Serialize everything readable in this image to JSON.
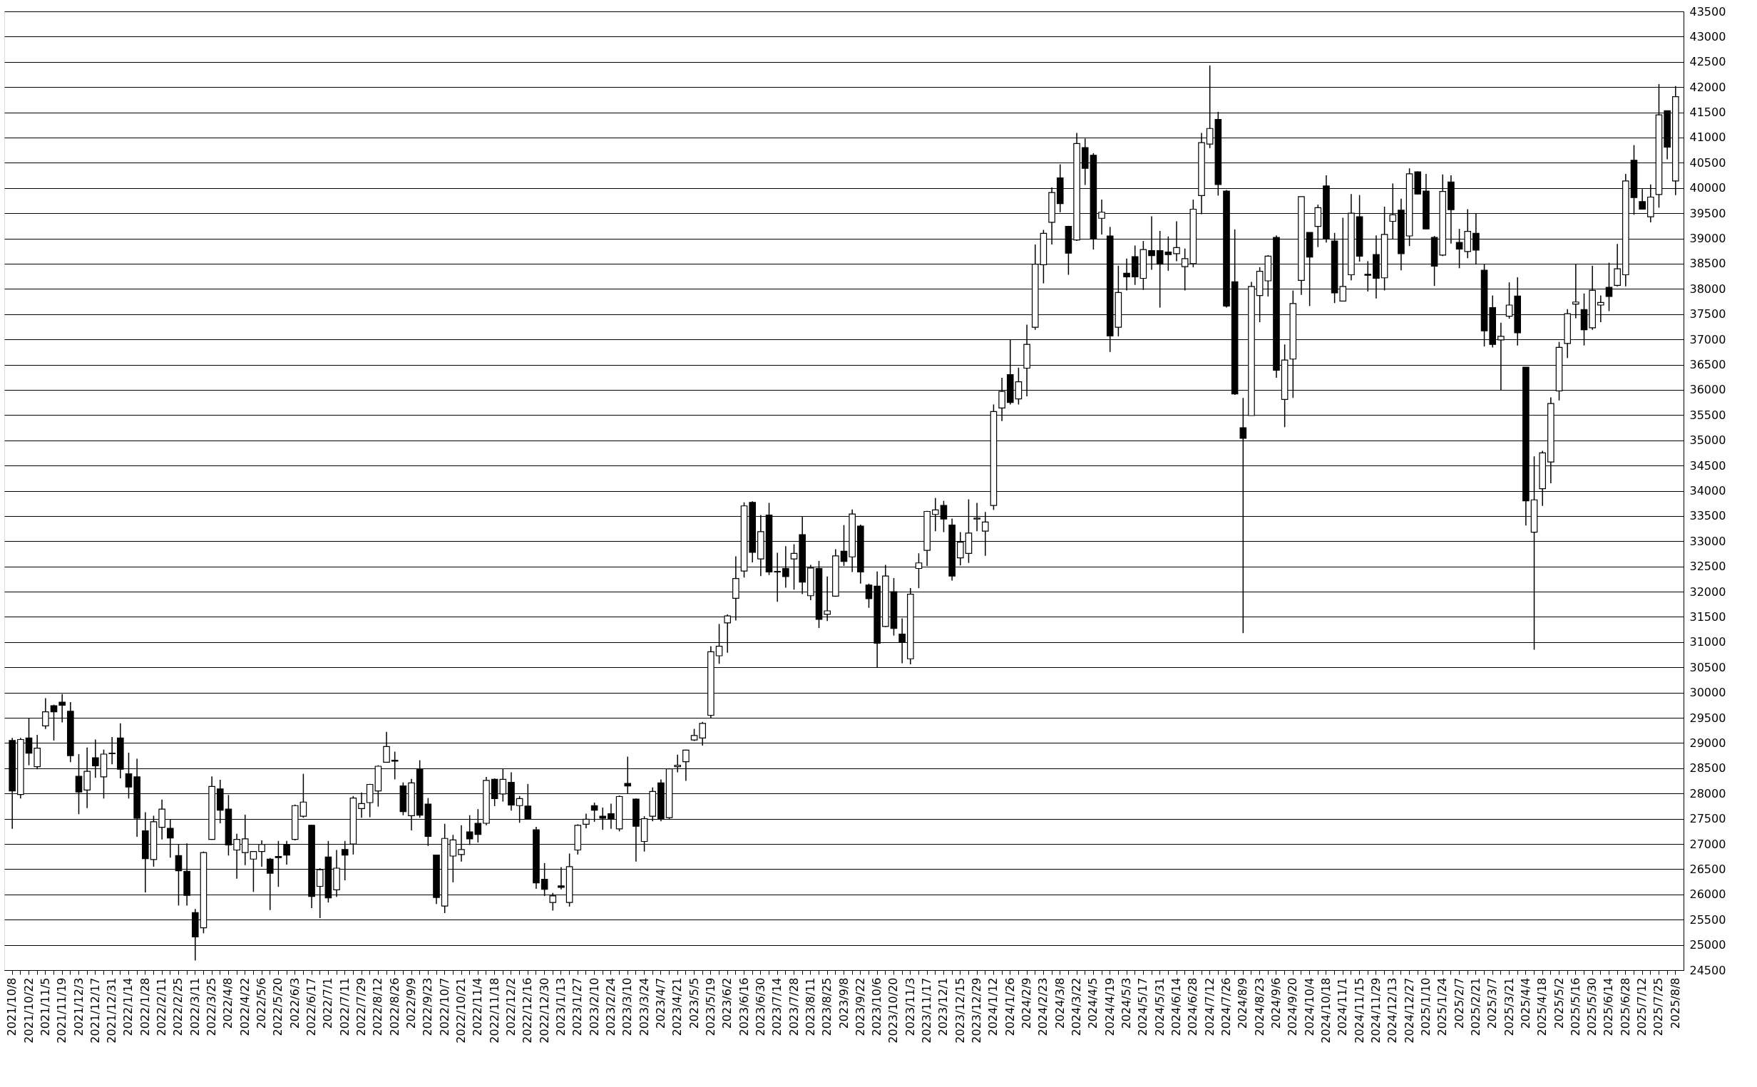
{
  "chart_data": {
    "type": "candlestick",
    "categories": [
      "2021/10/8",
      null,
      "2021/10/22",
      null,
      "2021/11/5",
      null,
      "2021/11/19",
      null,
      "2021/12/3",
      null,
      "2021/12/17",
      null,
      "2021/12/31",
      null,
      "2022/1/14",
      null,
      "2022/1/28",
      null,
      "2022/2/11",
      null,
      "2022/2/25",
      null,
      "2022/3/11",
      null,
      "2022/3/25",
      null,
      "2022/4/8",
      null,
      "2022/4/22",
      null,
      "2022/5/6",
      null,
      "2022/5/20",
      null,
      "2022/6/3",
      null,
      "2022/6/17",
      null,
      "2022/7/1",
      null,
      "2022/7/11",
      null,
      "2022/7/29",
      null,
      "2022/8/12",
      null,
      "2022/8/26",
      null,
      "2022/9/9",
      null,
      "2022/9/23",
      null,
      "2022/10/7",
      null,
      "2022/10/21",
      null,
      "2022/11/4",
      null,
      "2022/11/18",
      null,
      "2022/12/2",
      null,
      "2022/12/16",
      null,
      "2022/12/30",
      null,
      "2023/1/13",
      null,
      "2023/1/27",
      null,
      "2023/2/10",
      null,
      "2023/2/24",
      null,
      "2023/3/10",
      null,
      "2023/3/24",
      null,
      "2023/4/7",
      null,
      "2023/4/21",
      null,
      "2023/5/5",
      null,
      "2023/5/19",
      null,
      "2023/6/2",
      null,
      "2023/6/16",
      null,
      "2023/6/30",
      null,
      "2023/7/14",
      null,
      "2023/7/28",
      null,
      "2023/8/11",
      null,
      "2023/8/25",
      null,
      "2023/9/8",
      null,
      "2023/9/22",
      null,
      "2023/10/6",
      null,
      "2023/10/20",
      null,
      "2023/11/3",
      null,
      "2023/11/17",
      null,
      "2023/12/1",
      null,
      "2023/12/15",
      null,
      "2023/12/29",
      null,
      "2024/1/12",
      null,
      "2024/1/26",
      null,
      "2024/2/9",
      null,
      "2024/2/23",
      null,
      "2024/3/8",
      null,
      "2024/3/22",
      null,
      "2024/4/5",
      null,
      "2024/4/19",
      null,
      "2024/5/3",
      null,
      "2024/5/17",
      null,
      "2024/5/31",
      null,
      "2024/6/14",
      null,
      "2024/6/28",
      null,
      "2024/7/12",
      null,
      "2024/7/26",
      null,
      "2024/8/9",
      null,
      "2024/8/23",
      null,
      "2024/9/6",
      null,
      "2024/9/20",
      null,
      "2024/10/4",
      null,
      "2024/10/18",
      null,
      "2024/11/1",
      null,
      "2024/11/15",
      null,
      "2024/11/29",
      null,
      "2024/12/13",
      null,
      "2024/12/27",
      null,
      "2025/1/10",
      null,
      "2025/1/24",
      null,
      "2025/2/7",
      null,
      "2025/2/21",
      null,
      "2025/3/7",
      null,
      "2025/3/21",
      null,
      "2025/4/4",
      null,
      "2025/4/18",
      null,
      "2025/5/2",
      null,
      "2025/5/16",
      null,
      "2025/5/30",
      null,
      "2025/6/14",
      null,
      "2025/6/28",
      null,
      "2025/7/12",
      null,
      "2025/7/25",
      null,
      "2025/8/8"
    ],
    "ohlc": [
      [
        29050,
        29100,
        27300,
        28050
      ],
      [
        27980,
        29100,
        27900,
        29070
      ],
      [
        29100,
        29490,
        28560,
        28800
      ],
      [
        28530,
        29160,
        28480,
        28900
      ],
      [
        29340,
        29890,
        29280,
        29620
      ],
      [
        29740,
        29760,
        29050,
        29620
      ],
      [
        29810,
        29970,
        29410,
        29750
      ],
      [
        29630,
        29810,
        28620,
        28750
      ],
      [
        28340,
        28780,
        27590,
        28030
      ],
      [
        28070,
        28910,
        27710,
        28440
      ],
      [
        28710,
        29070,
        28310,
        28550
      ],
      [
        28330,
        28870,
        27900,
        28780
      ],
      [
        28790,
        29120,
        28580,
        28800
      ],
      [
        29100,
        29390,
        28300,
        28480
      ],
      [
        28390,
        28810,
        27900,
        28130
      ],
      [
        28330,
        28690,
        27140,
        27510
      ],
      [
        27260,
        27630,
        26040,
        26710
      ],
      [
        26690,
        27560,
        26550,
        27440
      ],
      [
        27330,
        27880,
        27090,
        27690
      ],
      [
        27310,
        27480,
        26730,
        27120
      ],
      [
        26770,
        26990,
        25780,
        26470
      ],
      [
        26460,
        27010,
        25780,
        25980
      ],
      [
        25640,
        25710,
        24690,
        25160
      ],
      [
        25340,
        26850,
        25230,
        26830
      ],
      [
        27090,
        28340,
        27080,
        28140
      ],
      [
        28090,
        28270,
        27410,
        27670
      ],
      [
        27690,
        27970,
        26770,
        26980
      ],
      [
        26880,
        27200,
        26310,
        27090
      ],
      [
        26830,
        27580,
        26580,
        27100
      ],
      [
        26700,
        26860,
        26050,
        26850
      ],
      [
        26850,
        27070,
        26550,
        26990
      ],
      [
        26700,
        26720,
        25690,
        26420
      ],
      [
        26750,
        27060,
        26150,
        26730
      ],
      [
        26990,
        27060,
        26590,
        26780
      ],
      [
        27090,
        27780,
        27070,
        27760
      ],
      [
        27550,
        28390,
        27520,
        27830
      ],
      [
        27370,
        27380,
        25730,
        25960
      ],
      [
        26160,
        26520,
        25530,
        26490
      ],
      [
        26740,
        27060,
        25840,
        25930
      ],
      [
        26090,
        26880,
        25950,
        26520
      ],
      [
        26890,
        27060,
        26280,
        26780
      ],
      [
        27000,
        27950,
        26790,
        27910
      ],
      [
        27700,
        28020,
        27520,
        27800
      ],
      [
        27820,
        28190,
        27530,
        28180
      ],
      [
        28050,
        28560,
        27740,
        28540
      ],
      [
        28620,
        29220,
        28620,
        28930
      ],
      [
        28660,
        28830,
        28280,
        28640
      ],
      [
        28150,
        28220,
        27570,
        27640
      ],
      [
        27560,
        28290,
        27270,
        28210
      ],
      [
        28490,
        28660,
        27520,
        27570
      ],
      [
        27790,
        27910,
        26960,
        27150
      ],
      [
        26780,
        26790,
        25810,
        25940
      ],
      [
        25770,
        27400,
        25630,
        27110
      ],
      [
        26760,
        27180,
        26240,
        27080
      ],
      [
        26790,
        27370,
        26650,
        26890
      ],
      [
        27240,
        27570,
        26980,
        27100
      ],
      [
        27410,
        27690,
        27030,
        27190
      ],
      [
        27410,
        28330,
        27370,
        28260
      ],
      [
        28280,
        28300,
        27750,
        27900
      ],
      [
        27990,
        28490,
        27840,
        28280
      ],
      [
        28220,
        28420,
        27660,
        27770
      ],
      [
        27760,
        27950,
        27420,
        27900
      ],
      [
        27750,
        28190,
        27500,
        27500
      ],
      [
        27280,
        27340,
        26110,
        26230
      ],
      [
        26300,
        26620,
        25970,
        26100
      ],
      [
        25840,
        26030,
        25680,
        25970
      ],
      [
        26170,
        26540,
        26100,
        26140
      ],
      [
        25840,
        26810,
        25760,
        26550
      ],
      [
        26880,
        27390,
        26790,
        27370
      ],
      [
        27390,
        27600,
        27310,
        27490
      ],
      [
        27760,
        27820,
        27440,
        27670
      ],
      [
        27550,
        27720,
        27280,
        27510
      ],
      [
        27600,
        27800,
        27300,
        27500
      ],
      [
        27300,
        27960,
        27250,
        27940
      ],
      [
        28200,
        28730,
        28000,
        28150
      ],
      [
        27890,
        27900,
        26650,
        27350
      ],
      [
        27050,
        27550,
        26850,
        27500
      ],
      [
        27550,
        28120,
        27450,
        28040
      ],
      [
        28210,
        28280,
        27450,
        27500
      ],
      [
        27520,
        28500,
        27480,
        28490
      ],
      [
        28530,
        28770,
        28420,
        28560
      ],
      [
        28630,
        28870,
        28250,
        28860
      ],
      [
        29060,
        29280,
        29040,
        29150
      ],
      [
        29100,
        29420,
        28950,
        29390
      ],
      [
        29550,
        30920,
        29490,
        30810
      ],
      [
        30730,
        31360,
        30570,
        30920
      ],
      [
        31380,
        31550,
        30790,
        31520
      ],
      [
        31870,
        32700,
        31430,
        32260
      ],
      [
        32410,
        33770,
        32280,
        33700
      ],
      [
        33770,
        33790,
        32580,
        32780
      ],
      [
        32650,
        33520,
        32310,
        33190
      ],
      [
        33520,
        33760,
        32330,
        32390
      ],
      [
        32400,
        32770,
        31800,
        32390
      ],
      [
        32460,
        32900,
        32080,
        32300
      ],
      [
        32650,
        32940,
        32040,
        32760
      ],
      [
        33130,
        33490,
        31950,
        32190
      ],
      [
        31920,
        32530,
        31830,
        32470
      ],
      [
        32460,
        32610,
        31280,
        31450
      ],
      [
        31550,
        32300,
        31420,
        31620
      ],
      [
        31910,
        32840,
        31900,
        32710
      ],
      [
        32800,
        33320,
        32510,
        32600
      ],
      [
        32690,
        33630,
        32390,
        33540
      ],
      [
        33300,
        33330,
        32160,
        32390
      ],
      [
        32130,
        32160,
        31680,
        31860
      ],
      [
        32110,
        32400,
        30500,
        30980
      ],
      [
        31310,
        32530,
        31300,
        32310
      ],
      [
        32000,
        32270,
        31130,
        31270
      ],
      [
        31160,
        31470,
        30580,
        31000
      ],
      [
        30670,
        32070,
        30560,
        31950
      ],
      [
        32460,
        32760,
        32070,
        32570
      ],
      [
        32820,
        33600,
        32510,
        33590
      ],
      [
        33530,
        33860,
        33200,
        33620
      ],
      [
        33710,
        33800,
        33180,
        33440
      ],
      [
        33320,
        33450,
        32220,
        32310
      ],
      [
        32670,
        33180,
        32520,
        32980
      ],
      [
        32760,
        33830,
        32570,
        33160
      ],
      [
        33440,
        33760,
        33200,
        33460
      ],
      [
        33200,
        33580,
        32710,
        33380
      ],
      [
        33710,
        35710,
        33620,
        35570
      ],
      [
        35640,
        36240,
        35380,
        35970
      ],
      [
        36300,
        36990,
        35710,
        35750
      ],
      [
        35820,
        36440,
        35710,
        36160
      ],
      [
        36430,
        37290,
        35870,
        36900
      ],
      [
        37240,
        38880,
        37190,
        38490
      ],
      [
        38480,
        39170,
        38110,
        39100
      ],
      [
        39320,
        40010,
        38880,
        39910
      ],
      [
        40200,
        40470,
        39520,
        39690
      ],
      [
        39240,
        39250,
        38280,
        38710
      ],
      [
        38970,
        41090,
        38950,
        40880
      ],
      [
        40800,
        40980,
        40060,
        40390
      ],
      [
        40650,
        40690,
        38780,
        38990
      ],
      [
        39400,
        39770,
        39080,
        39520
      ],
      [
        39050,
        39230,
        36750,
        37070
      ],
      [
        37240,
        38460,
        37060,
        37930
      ],
      [
        38310,
        38600,
        37970,
        38240
      ],
      [
        38640,
        38860,
        38080,
        38240
      ],
      [
        38210,
        38950,
        37980,
        38780
      ],
      [
        38760,
        39440,
        38380,
        38660
      ],
      [
        38760,
        39150,
        37630,
        38490
      ],
      [
        38730,
        39040,
        38360,
        38680
      ],
      [
        38700,
        39340,
        38550,
        38820
      ],
      [
        38440,
        38800,
        37970,
        38600
      ],
      [
        38500,
        39770,
        38430,
        39580
      ],
      [
        39850,
        41090,
        39480,
        40900
      ],
      [
        40870,
        42430,
        40790,
        41180
      ],
      [
        41360,
        41510,
        39850,
        40070
      ],
      [
        39940,
        39960,
        37630,
        37660
      ],
      [
        38140,
        39180,
        35900,
        35920
      ],
      [
        35250,
        35840,
        31180,
        35040
      ],
      [
        35490,
        38140,
        35490,
        38050
      ],
      [
        37870,
        38430,
        37340,
        38350
      ],
      [
        38160,
        38670,
        37850,
        38650
      ],
      [
        39020,
        39060,
        36240,
        36390
      ],
      [
        35810,
        36900,
        35260,
        36590
      ],
      [
        36610,
        37970,
        35840,
        37710
      ],
      [
        38170,
        39830,
        37880,
        39830
      ],
      [
        39120,
        39120,
        37660,
        38630
      ],
      [
        39240,
        39670,
        38830,
        39610
      ],
      [
        40040,
        40250,
        38920,
        38990
      ],
      [
        38950,
        39110,
        37720,
        37920
      ],
      [
        37760,
        39410,
        37760,
        38050
      ],
      [
        38280,
        39880,
        38170,
        39500
      ],
      [
        39430,
        39860,
        38540,
        38650
      ],
      [
        38290,
        38550,
        37950,
        38270
      ],
      [
        38680,
        39060,
        37810,
        38210
      ],
      [
        38220,
        39630,
        37970,
        39080
      ],
      [
        39340,
        40090,
        38990,
        39470
      ],
      [
        39560,
        39790,
        38370,
        38700
      ],
      [
        39050,
        40390,
        38850,
        40280
      ],
      [
        40320,
        40330,
        39870,
        39880
      ],
      [
        39940,
        40280,
        39180,
        39190
      ],
      [
        39020,
        39050,
        38060,
        38450
      ],
      [
        38670,
        40270,
        38650,
        39930
      ],
      [
        40120,
        40250,
        38900,
        39570
      ],
      [
        38920,
        39190,
        38410,
        38790
      ],
      [
        38740,
        39580,
        38610,
        39140
      ],
      [
        39100,
        39500,
        38480,
        38770
      ],
      [
        38370,
        38500,
        36860,
        37170
      ],
      [
        37630,
        37870,
        36840,
        36900
      ],
      [
        36990,
        37330,
        36000,
        37060
      ],
      [
        37460,
        38130,
        37410,
        37680
      ],
      [
        37860,
        38230,
        36880,
        37130
      ],
      [
        36450,
        36450,
        33310,
        33800
      ],
      [
        33180,
        34680,
        30850,
        33820
      ],
      [
        34040,
        34790,
        33700,
        34750
      ],
      [
        34570,
        35850,
        34150,
        35730
      ],
      [
        35980,
        36950,
        35790,
        36840
      ],
      [
        36920,
        37600,
        36630,
        37510
      ],
      [
        37700,
        38500,
        37420,
        37740
      ],
      [
        37590,
        37910,
        36880,
        37190
      ],
      [
        37230,
        38460,
        37190,
        37970
      ],
      [
        37680,
        37870,
        37340,
        37730
      ],
      [
        38030,
        38520,
        37560,
        37850
      ],
      [
        38070,
        38890,
        38050,
        38400
      ],
      [
        38280,
        40280,
        38050,
        40140
      ],
      [
        40550,
        40850,
        39470,
        39810
      ],
      [
        39730,
        39980,
        39580,
        39580
      ],
      [
        39430,
        40070,
        39320,
        39820
      ],
      [
        39870,
        42060,
        39610,
        41450
      ],
      [
        41530,
        41530,
        40570,
        40810
      ],
      [
        40140,
        42020,
        39860,
        41810
      ]
    ],
    "colors": [
      "#000000",
      "#ffffff",
      "#000000",
      "#ffffff",
      "#ffffff",
      "#000000",
      "#000000",
      "#000000",
      "#000000",
      "#ffffff",
      "#000000",
      "#ffffff",
      "#ffffff",
      "#000000",
      "#000000",
      "#000000",
      "#000000",
      "#ffffff",
      "#ffffff",
      "#000000",
      "#000000",
      "#000000",
      "#000000",
      "#ffffff",
      "#ffffff",
      "#000000",
      "#000000",
      "#ffffff",
      "#ffffff",
      "#ffffff",
      "#ffffff",
      "#000000",
      "#000000",
      "#000000",
      "#ffffff",
      "#ffffff",
      "#000000",
      "#ffffff",
      "#000000",
      "#ffffff",
      "#000000",
      "#ffffff",
      "#ffffff",
      "#ffffff",
      "#ffffff",
      "#ffffff",
      "#000000",
      "#000000",
      "#ffffff",
      "#000000",
      "#000000",
      "#000000",
      "#ffffff",
      "#ffffff",
      "#ffffff",
      "#000000",
      "#000000",
      "#ffffff",
      "#000000",
      "#ffffff",
      "#000000",
      "#ffffff",
      "#000000",
      "#000000",
      "#000000",
      "#ffffff",
      "#000000",
      "#ffffff",
      "#ffffff",
      "#ffffff",
      "#000000",
      "#000000",
      "#000000",
      "#ffffff",
      "#000000",
      "#000000",
      "#ffffff",
      "#ffffff",
      "#000000",
      "#ffffff",
      "#ffffff",
      "#ffffff",
      "#ffffff",
      "#ffffff",
      "#ffffff",
      "#ffffff",
      "#ffffff",
      "#ffffff",
      "#ffffff",
      "#000000",
      "#ffffff",
      "#000000",
      "#000000",
      "#000000",
      "#ffffff",
      "#000000",
      "#ffffff",
      "#000000",
      "#ffffff",
      "#ffffff",
      "#000000",
      "#ffffff",
      "#000000",
      "#000000",
      "#000000",
      "#ffffff",
      "#000000",
      "#000000",
      "#ffffff",
      "#ffffff",
      "#ffffff",
      "#ffffff",
      "#000000",
      "#000000",
      "#ffffff",
      "#ffffff",
      "#ffffff",
      "#ffffff",
      "#ffffff",
      "#ffffff",
      "#000000",
      "#ffffff",
      "#ffffff",
      "#ffffff",
      "#ffffff",
      "#ffffff",
      "#000000",
      "#000000",
      "#ffffff",
      "#000000",
      "#000000",
      "#ffffff",
      "#000000",
      "#ffffff",
      "#000000",
      "#000000",
      "#ffffff",
      "#000000",
      "#000000",
      "#000000",
      "#ffffff",
      "#ffffff",
      "#ffffff",
      "#ffffff",
      "#ffffff",
      "#000000",
      "#000000",
      "#000000",
      "#000000",
      "#ffffff",
      "#ffffff",
      "#ffffff",
      "#000000",
      "#ffffff",
      "#ffffff",
      "#ffffff",
      "#000000",
      "#ffffff",
      "#000000",
      "#000000",
      "#ffffff",
      "#ffffff",
      "#000000",
      "#000000",
      "#000000",
      "#ffffff",
      "#ffffff",
      "#000000",
      "#ffffff",
      "#000000",
      "#000000",
      "#000000",
      "#ffffff",
      "#000000",
      "#000000",
      "#ffffff",
      "#000000",
      "#000000",
      "#000000",
      "#ffffff",
      "#ffffff",
      "#000000",
      "#000000",
      "#ffffff",
      "#ffffff",
      "#ffffff",
      "#ffffff",
      "#ffffff",
      "#ffffff",
      "#000000",
      "#ffffff",
      "#ffffff",
      "#000000",
      "#ffffff",
      "#ffffff",
      "#000000",
      "#000000",
      "#ffffff",
      "#ffffff",
      "#000000",
      "#ffffff"
    ],
    "ylim": [
      24500,
      43500
    ],
    "yticks": [
      24500,
      25000,
      25500,
      26000,
      26500,
      27000,
      27500,
      28000,
      28500,
      29000,
      29500,
      30000,
      30500,
      31000,
      31500,
      32000,
      32500,
      33000,
      33500,
      34000,
      34500,
      35000,
      35500,
      36000,
      36500,
      37000,
      37500,
      38000,
      38500,
      39000,
      39500,
      40000,
      40500,
      41000,
      41500,
      42000,
      42500,
      43000,
      43500
    ],
    "grid": "y"
  }
}
